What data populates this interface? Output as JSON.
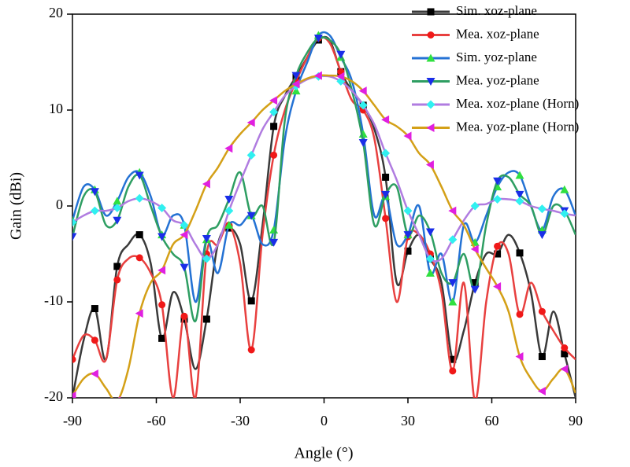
{
  "chart_data": {
    "type": "line",
    "xlabel": "Angle (°)",
    "ylabel": "Gain (dBi)",
    "xlim": [
      -90,
      90
    ],
    "xticks": [
      -90,
      -60,
      -30,
      0,
      30,
      60,
      90
    ],
    "ylim": [
      -20,
      20
    ],
    "yticks": [
      -20,
      -10,
      0,
      10,
      20
    ],
    "legend": "upper right",
    "x": [
      -90,
      -86,
      -82,
      -78,
      -74,
      -70,
      -66,
      -62,
      -58,
      -54,
      -50,
      -46,
      -42,
      -38,
      -34,
      -30,
      -26,
      -22,
      -18,
      -14,
      -10,
      -6,
      -2,
      2,
      6,
      10,
      14,
      18,
      22,
      26,
      30,
      34,
      38,
      42,
      46,
      50,
      54,
      58,
      62,
      66,
      70,
      74,
      78,
      82,
      86,
      90
    ],
    "series": [
      {
        "name": "Sim. xoz-plane",
        "color": "#3a3a3a",
        "marker": "square",
        "marker_color": "#000000",
        "values": [
          -20,
          -14,
          -10.7,
          -16,
          -6.3,
          -4,
          -3,
          -6,
          -13.8,
          -9,
          -11.8,
          -17,
          -11.8,
          -4,
          -2.3,
          -4,
          -9.9,
          -2,
          8.3,
          11.5,
          13.5,
          15.5,
          17.3,
          17.3,
          14,
          12,
          10.5,
          8,
          3,
          -8,
          -4.7,
          -3,
          -5.5,
          -8,
          -16,
          -13,
          -8,
          -5,
          -5,
          -3,
          -4.9,
          -9,
          -15.7,
          -11,
          -15.4,
          -20
        ]
      },
      {
        "name": "Mea. xoz-plane",
        "color": "#e8403f",
        "marker": "circle",
        "marker_color": "#f01818",
        "values": [
          -16,
          -13.5,
          -14,
          -16,
          -7.7,
          -5.5,
          -5.4,
          -7,
          -10.3,
          -20,
          -11.5,
          -20,
          -5,
          -4,
          -2,
          -6,
          -15,
          -3,
          5.3,
          10,
          13,
          15.5,
          17.5,
          17,
          14,
          11,
          10,
          7,
          -1.3,
          -10,
          -3.2,
          -3,
          -5,
          -9,
          -17.2,
          -8,
          -20.3,
          -10,
          -4.2,
          -5,
          -11.3,
          -8,
          -11,
          -13,
          -14.8,
          -16
        ]
      },
      {
        "name": "Sim. yoz-plane",
        "color": "#2472d4",
        "marker": "triangle-up",
        "marker_color": "#30e040",
        "values": [
          -1.5,
          2,
          1.7,
          -1,
          0.5,
          3,
          3.5,
          1,
          -3,
          -1,
          -2,
          -10,
          -3.5,
          -7,
          -2,
          -2,
          -1,
          -4,
          -2.5,
          7,
          12,
          15,
          17.8,
          17.8,
          15.5,
          13,
          7.5,
          -1,
          1,
          -4,
          -3,
          0,
          -7,
          -5,
          -10,
          -2,
          -3.8,
          -1,
          2,
          3.5,
          3.2,
          0,
          -2.5,
          1,
          1.7,
          -1
        ]
      },
      {
        "name": "Mea. yoz-plane",
        "color": "#2e9e62",
        "marker": "triangle-down",
        "marker_color": "#1a2ee8",
        "values": [
          -3.2,
          1,
          1.5,
          -2,
          -1.5,
          2,
          3.2,
          0,
          -3.2,
          -5,
          -6.4,
          -12,
          -3.4,
          -2,
          0.7,
          3.5,
          -1,
          0,
          -3.8,
          9,
          13.6,
          16,
          17.5,
          17.3,
          15.8,
          12,
          6.6,
          -2,
          1.2,
          2,
          -3,
          -1,
          -2.7,
          -7,
          -8,
          -5,
          -8.7,
          -2,
          2.6,
          3,
          1.2,
          0,
          -3,
          0,
          -0.5,
          -3
        ]
      },
      {
        "name": "Mea. xoz-plane (Horn)",
        "color": "#b07ce0",
        "marker": "diamond",
        "marker_color": "#30f0f0",
        "values": [
          -1.7,
          -1,
          -0.5,
          -0.5,
          -0.2,
          0.5,
          0.8,
          0.5,
          -0.2,
          -1.5,
          -2,
          -4,
          -5.5,
          -4,
          -0.5,
          2.5,
          5.3,
          8,
          9.8,
          11.5,
          12.5,
          13.2,
          13.5,
          13.5,
          13,
          12,
          10.5,
          8.5,
          5.5,
          2.7,
          -0.5,
          -3,
          -5.5,
          -5.5,
          -3.5,
          -1.5,
          0,
          0.2,
          0.7,
          0.7,
          0.5,
          0,
          -0.3,
          -0.5,
          -0.8,
          -1
        ]
      },
      {
        "name": "Mea. yoz-plane (Horn)",
        "color": "#d4a017",
        "marker": "triangle-left",
        "marker_color": "#e020e0",
        "values": [
          -19.8,
          -18,
          -17.5,
          -19,
          -20.3,
          -17,
          -11.2,
          -8,
          -6.7,
          -4,
          -3,
          -0.5,
          2.3,
          4,
          6,
          7.5,
          8.7,
          10,
          11,
          12,
          12.7,
          13.3,
          13.6,
          13.6,
          13.5,
          13,
          12,
          10.5,
          9,
          8.3,
          7.3,
          5.5,
          4.3,
          2,
          -0.5,
          -2,
          -4.5,
          -6.5,
          -8.4,
          -11,
          -15.7,
          -18,
          -19.3,
          -18,
          -17,
          -19.5
        ]
      }
    ]
  }
}
